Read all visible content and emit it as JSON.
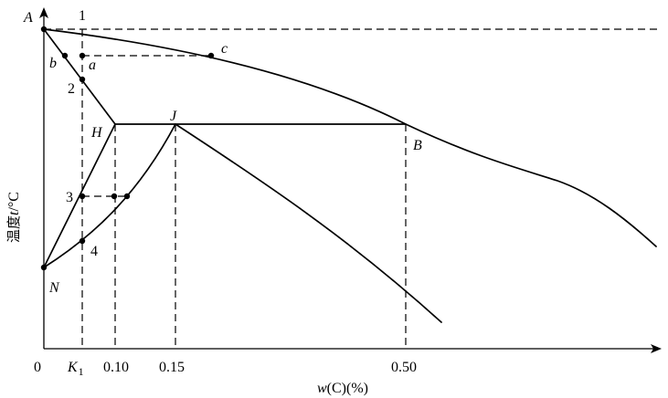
{
  "diagram": {
    "points": {
      "A": "A",
      "B": "B",
      "H": "H",
      "J": "J",
      "N": "N",
      "a": "a",
      "b": "b",
      "c": "c"
    },
    "markers": {
      "m1": "1",
      "m2": "2",
      "m3": "3",
      "m4": "4"
    },
    "x_ticks": {
      "t0": "0",
      "k1_base": "K",
      "k1_sub": "1",
      "t010": "0.10",
      "t015": "0.15",
      "t050": "0.50"
    },
    "x_axis_label": {
      "pre": "w",
      "post": "(C)(%)"
    },
    "y_axis_label": {
      "pre": "温度",
      "var": "t",
      "post": "/°C"
    }
  }
}
